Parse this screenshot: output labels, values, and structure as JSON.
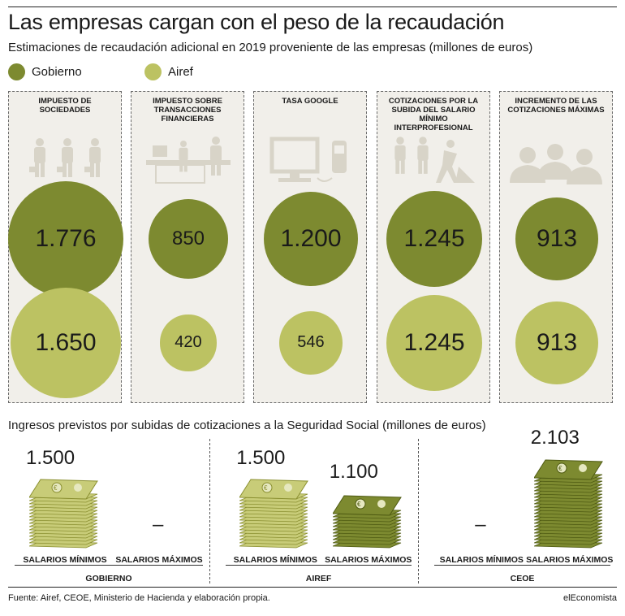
{
  "title": "Las empresas cargan con el peso de la recaudación",
  "subtitle": "Estimaciones de recaudación adicional en 2019 proveniente de las empresas (millones de euros)",
  "legend": [
    {
      "label": "Gobierno",
      "color": "#7d8a30"
    },
    {
      "label": "Airef",
      "color": "#bcc262"
    }
  ],
  "colors": {
    "gobierno": "#7d8a30",
    "airef": "#bcc262",
    "panel": "#f1efea",
    "icon": "#d8d4c8",
    "bill_light": "#c8cc78",
    "bill_dark": "#7d8a30"
  },
  "chart_data": [
    {
      "type": "bubble",
      "unit": "millones de euros",
      "categories": [
        "IMPUESTO DE SOCIEDADES",
        "IMPUESTO SOBRE TRANSACCIONES FINANCIERAS",
        "TASA GOOGLE",
        "COTIZACIONES POR LA SUBIDA DEL SALARIO MÍNIMO INTERPROFESIONAL",
        "INCREMENTO DE LAS COTIZACIONES MÁXIMAS"
      ],
      "icons": [
        "businessmen-icon",
        "bank-counter-icon",
        "computer-phone-icon",
        "workers-icon",
        "executives-icon"
      ],
      "series": [
        {
          "name": "Gobierno",
          "values": [
            1776,
            850,
            1200,
            1245,
            913
          ],
          "labels": [
            "1.776",
            "850",
            "1.200",
            "1.245",
            "913"
          ]
        },
        {
          "name": "Airef",
          "values": [
            1650,
            420,
            546,
            1245,
            913
          ],
          "labels": [
            "1.650",
            "420",
            "546",
            "1.245",
            "913"
          ]
        }
      ]
    },
    {
      "type": "bar",
      "title": "Ingresos previstos por subidas de cotizaciones a la Seguridad Social (millones de euros)",
      "groups": [
        {
          "name": "GOBIERNO",
          "bars": [
            {
              "label": "SALARIOS MÍNIMOS",
              "value": 1500,
              "display": "1.500"
            },
            {
              "label": "SALARIOS MÁXIMOS",
              "value": null,
              "display": "–"
            }
          ]
        },
        {
          "name": "AIREF",
          "bars": [
            {
              "label": "SALARIOS MÍNIMOS",
              "value": 1500,
              "display": "1.500"
            },
            {
              "label": "SALARIOS MÁXIMOS",
              "value": 1100,
              "display": "1.100"
            }
          ]
        },
        {
          "name": "CEOE",
          "bars": [
            {
              "label": "SALARIOS MÍNIMOS",
              "value": null,
              "display": "–"
            },
            {
              "label": "SALARIOS MÁXIMOS",
              "value": 2103,
              "display": "2.103"
            }
          ]
        }
      ]
    }
  ],
  "source": "Fuente: Airef, CEOE, Ministerio de Hacienda y elaboración propia.",
  "brand": "elEconomista"
}
